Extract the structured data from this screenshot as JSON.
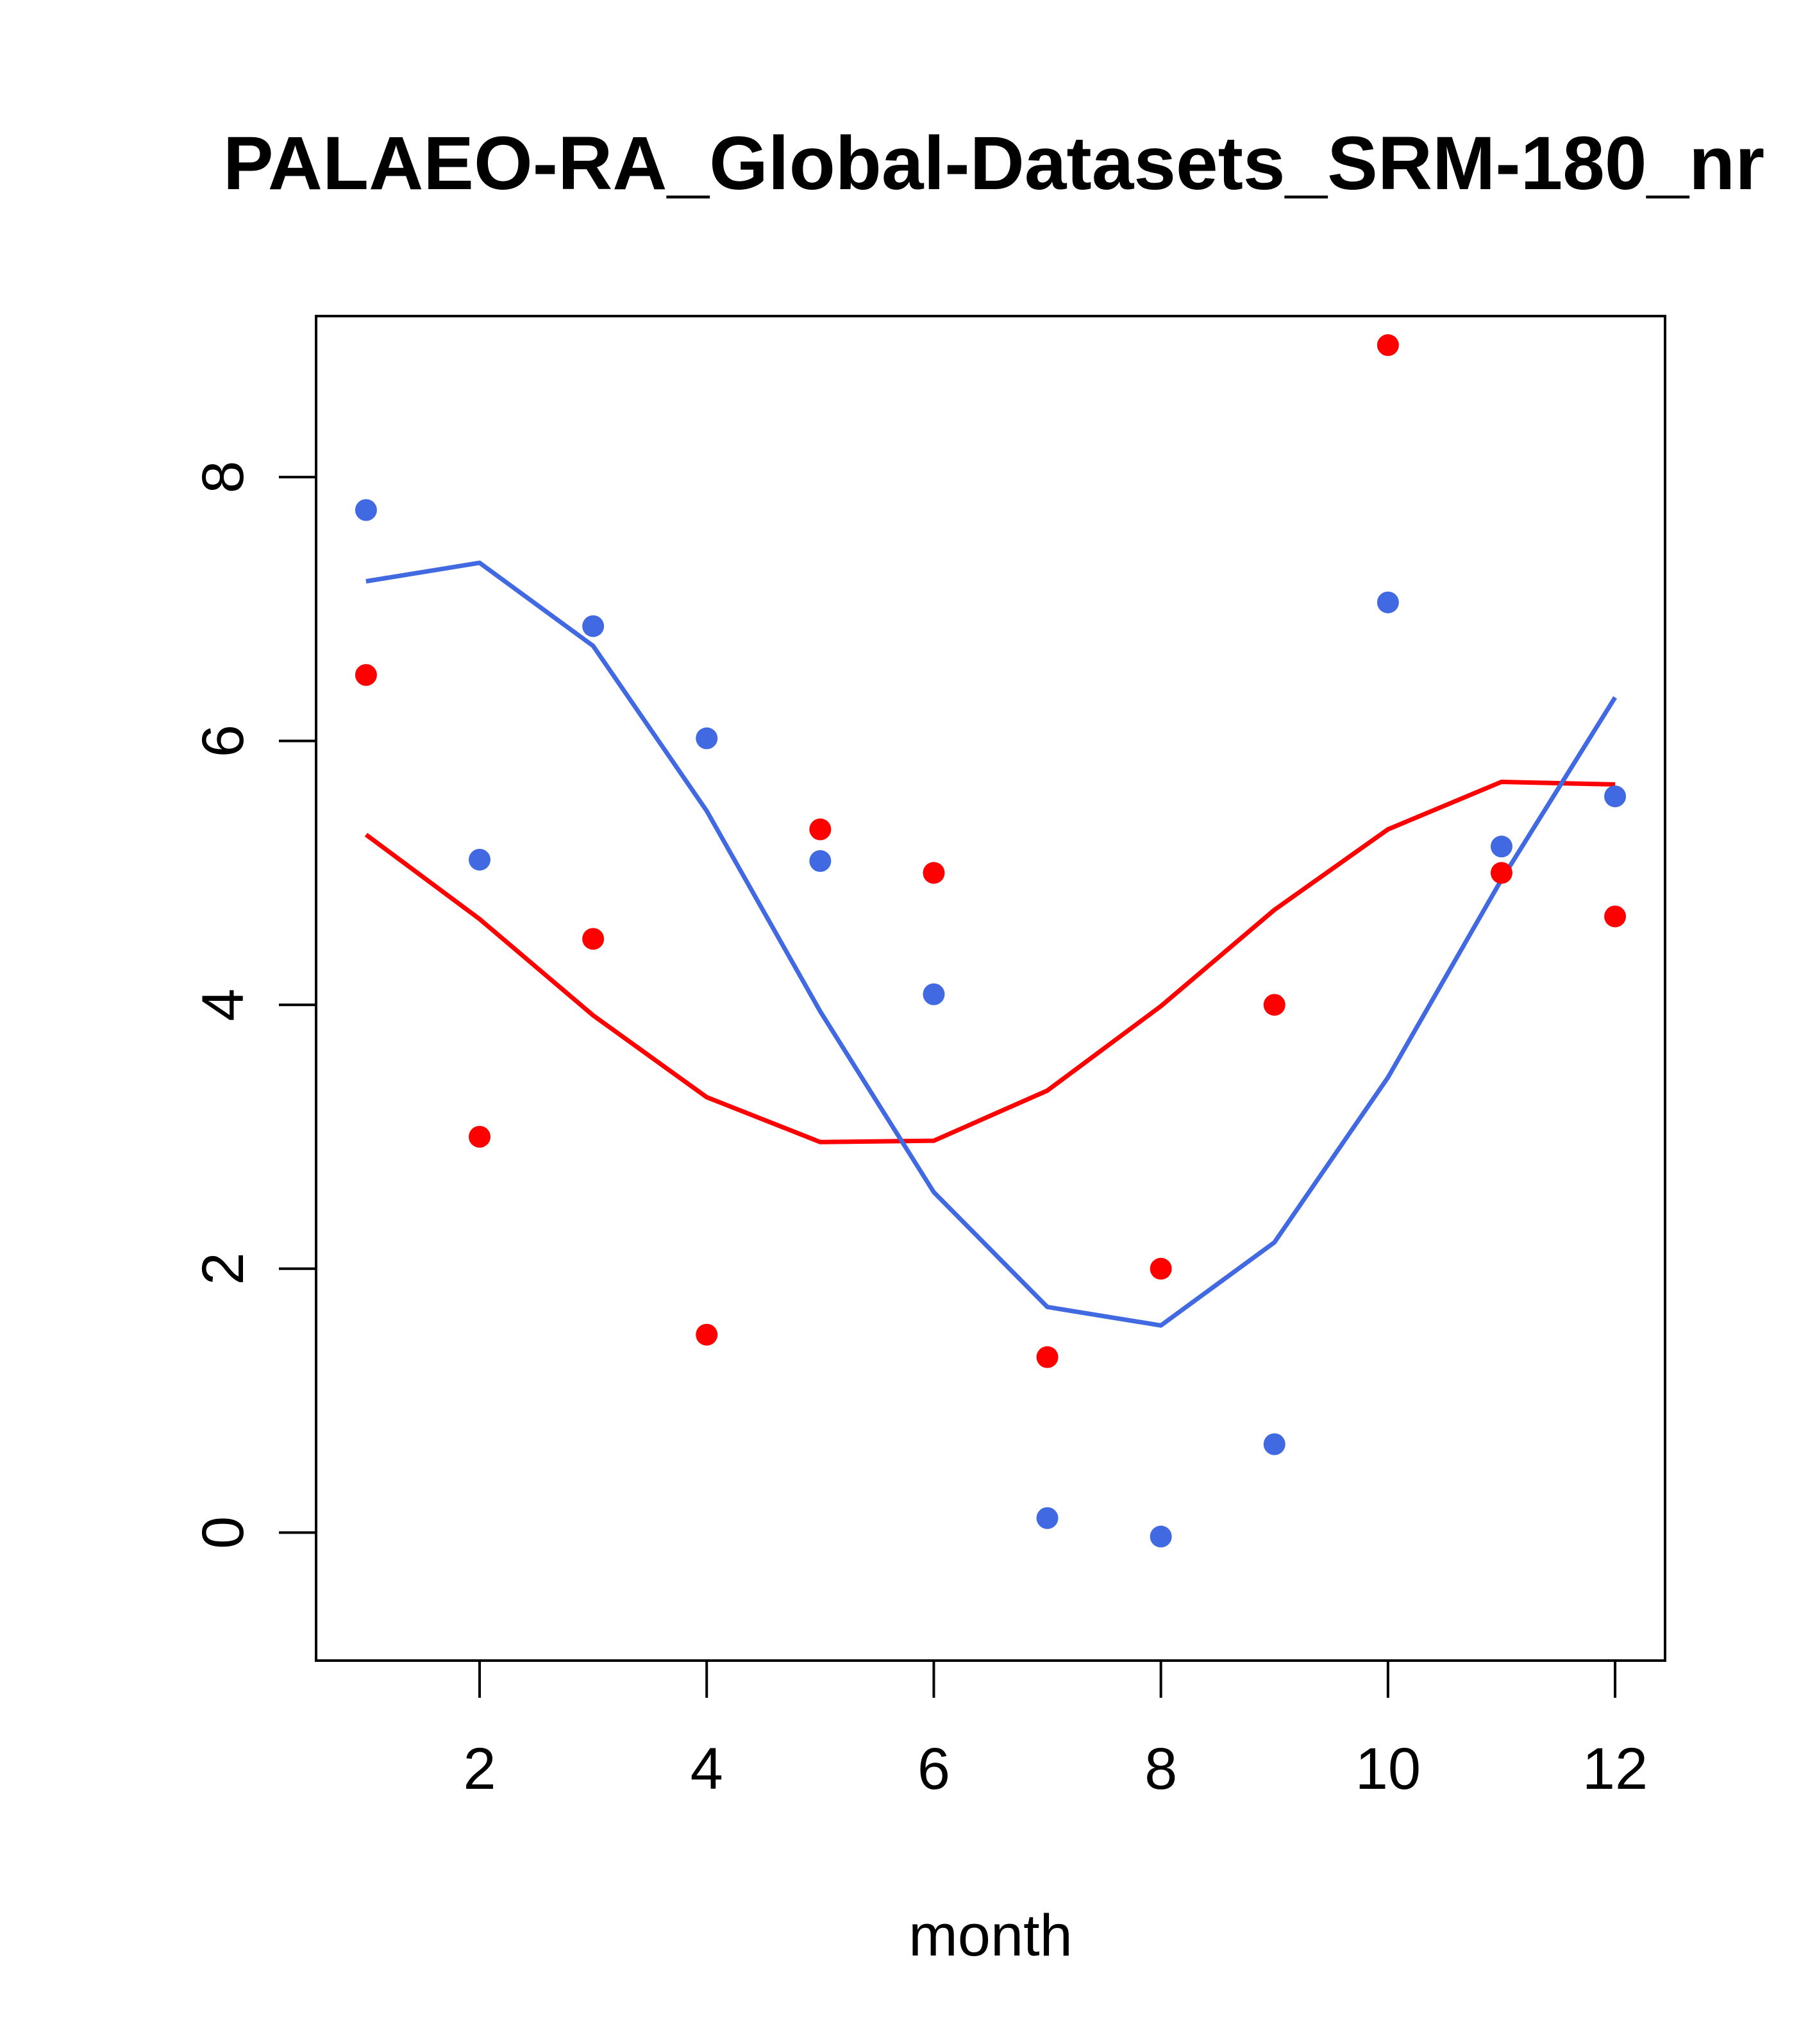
{
  "chart_data": {
    "type": "scatter",
    "title": "PALAEO-RA_Global-Datasets_SRM-180_nr",
    "xlabel": "month",
    "ylabel": "",
    "xlim": [
      0.56,
      12.44
    ],
    "ylim": [
      -0.97,
      9.22
    ],
    "xticks": [
      2,
      4,
      6,
      8,
      10,
      12
    ],
    "xtick_labels": [
      "2",
      "4",
      "6",
      "8",
      "10",
      "12"
    ],
    "yticks": [
      0,
      2,
      4,
      6,
      8
    ],
    "ytick_labels": [
      "0",
      "2",
      "4",
      "6",
      "8"
    ],
    "grid": false,
    "series": [
      {
        "name": "red points",
        "kind": "points",
        "color": "#FF0000",
        "x": [
          1,
          2,
          3,
          4,
          5,
          6,
          7,
          8,
          9,
          10,
          11,
          12
        ],
        "values": [
          6.5,
          3.0,
          4.5,
          1.5,
          5.33,
          5.0,
          1.33,
          2.0,
          4.0,
          9.0,
          5.0,
          4.67
        ]
      },
      {
        "name": "blue points",
        "kind": "points",
        "color": "#4169E1",
        "x": [
          1,
          2,
          3,
          4,
          5,
          6,
          7,
          8,
          9,
          10,
          11,
          12
        ],
        "values": [
          7.75,
          5.1,
          6.87,
          6.02,
          5.09,
          4.08,
          0.11,
          -0.03,
          0.67,
          7.05,
          5.2,
          5.58
        ]
      },
      {
        "name": "red line",
        "kind": "line",
        "color": "#FF0000",
        "x": [
          1,
          2,
          3,
          4,
          5,
          6,
          7,
          8,
          9,
          10,
          11,
          12
        ],
        "values": [
          5.29,
          4.65,
          3.92,
          3.3,
          2.96,
          2.97,
          3.35,
          3.99,
          4.72,
          5.33,
          5.69,
          5.67
        ]
      },
      {
        "name": "blue line",
        "kind": "line",
        "color": "#4169E1",
        "x": [
          1,
          2,
          3,
          4,
          5,
          6,
          7,
          8,
          9,
          10,
          11,
          12
        ],
        "values": [
          7.21,
          7.35,
          6.72,
          5.47,
          3.95,
          2.58,
          1.71,
          1.57,
          2.2,
          3.45,
          4.95,
          6.33
        ]
      }
    ]
  }
}
